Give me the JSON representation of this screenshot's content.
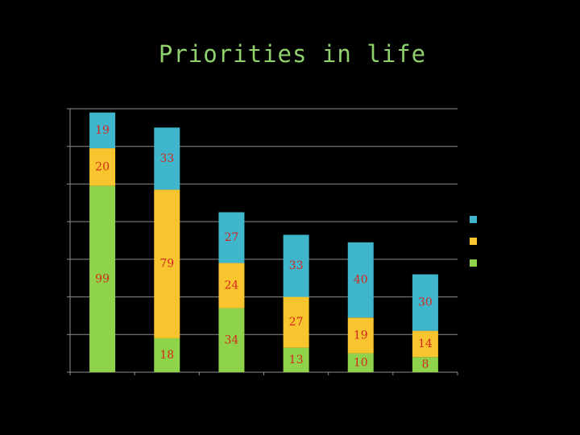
{
  "colors": {
    "background": "#000000",
    "title": "#8fd16a",
    "bottom_series": "#8fd34a",
    "middle_series": "#f9c52f",
    "top_series": "#3fb6cc",
    "data_labels": "#d4281e",
    "gridlines": "#8c8c8c"
  },
  "chart_data": {
    "type": "bar",
    "stacked": true,
    "title": "Priorities in life",
    "xlabel": "",
    "ylabel": "",
    "categories": [
      "",
      "",
      "",
      "",
      "",
      ""
    ],
    "ylim": [
      0,
      140
    ],
    "grid": true,
    "legend_position": "right",
    "series": [
      {
        "color": "#8fd34a",
        "values": [
          99,
          18,
          34,
          13,
          10,
          8
        ]
      },
      {
        "color": "#f9c52f",
        "values": [
          20,
          79,
          24,
          27,
          19,
          14
        ]
      },
      {
        "color": "#3fb6cc",
        "values": [
          19,
          33,
          27,
          33,
          40,
          30
        ]
      }
    ]
  }
}
